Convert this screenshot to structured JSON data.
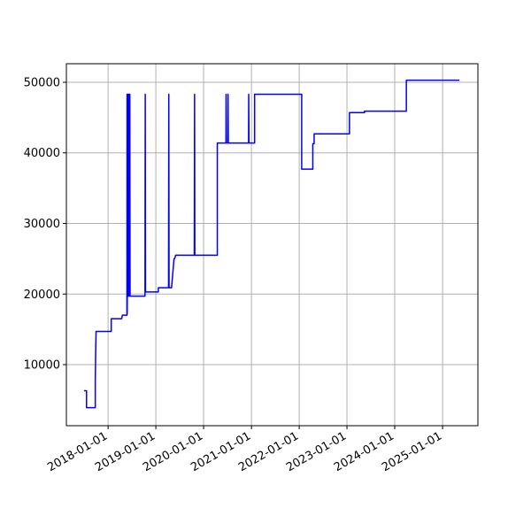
{
  "chart_data": {
    "type": "line",
    "x": [
      "2017-07-01",
      "2017-07-20",
      "2017-07-20",
      "2017-09-25",
      "2017-09-25",
      "2017-09-28",
      "2017-10-01",
      "2018-01-25",
      "2018-01-25",
      "2018-04-15",
      "2018-04-20",
      "2018-05-25",
      "2018-05-26",
      "2018-05-27",
      "2018-06-02",
      "2018-06-04",
      "2018-06-08",
      "2018-06-10",
      "2018-06-16",
      "2018-06-18",
      "2018-10-10",
      "2018-10-12",
      "2018-10-14",
      "2019-01-20",
      "2019-01-20",
      "2019-04-08",
      "2019-04-10",
      "2019-04-12",
      "2019-05-01",
      "2019-05-20",
      "2019-05-25",
      "2019-06-01",
      "2019-10-22",
      "2019-10-24",
      "2019-10-26",
      "2020-04-15",
      "2020-04-15",
      "2020-06-20",
      "2020-06-21",
      "2020-06-23",
      "2020-07-05",
      "2020-07-06",
      "2020-07-08",
      "2020-12-10",
      "2020-12-11",
      "2020-12-13",
      "2021-01-25",
      "2021-01-25",
      "2022-01-20",
      "2022-01-20",
      "2022-04-15",
      "2022-04-15",
      "2022-04-25",
      "2022-04-25",
      "2023-01-20",
      "2023-01-20",
      "2023-05-15",
      "2023-05-15",
      "2024-03-30",
      "2024-03-30",
      "2025-05-10"
    ],
    "series": [
      {
        "color": "#0000ff",
        "values": [
          6300,
          6300,
          3900,
          3900,
          7800,
          12000,
          14700,
          14700,
          16500,
          16500,
          17000,
          17000,
          48300,
          17200,
          48300,
          19700,
          48300,
          19700,
          48300,
          19700,
          19700,
          48300,
          20300,
          20300,
          20900,
          20900,
          48300,
          20900,
          20900,
          25000,
          25000,
          25500,
          25500,
          48300,
          25500,
          25500,
          41400,
          41400,
          48300,
          41400,
          41400,
          48300,
          41400,
          41400,
          48300,
          41400,
          41400,
          48300,
          48300,
          37700,
          37700,
          41300,
          41300,
          42700,
          42700,
          45700,
          45700,
          45900,
          45900,
          50300,
          50300
        ]
      }
    ],
    "xlim": [
      "2017-02-16",
      "2025-09-28"
    ],
    "xticks": [
      "2018-01-01",
      "2019-01-01",
      "2020-01-01",
      "2021-01-01",
      "2022-01-01",
      "2023-01-01",
      "2024-01-01",
      "2025-01-01"
    ],
    "ylim": [
      1350,
      52630
    ],
    "yticks": [
      10000,
      20000,
      30000,
      40000,
      50000
    ],
    "grid": true
  }
}
